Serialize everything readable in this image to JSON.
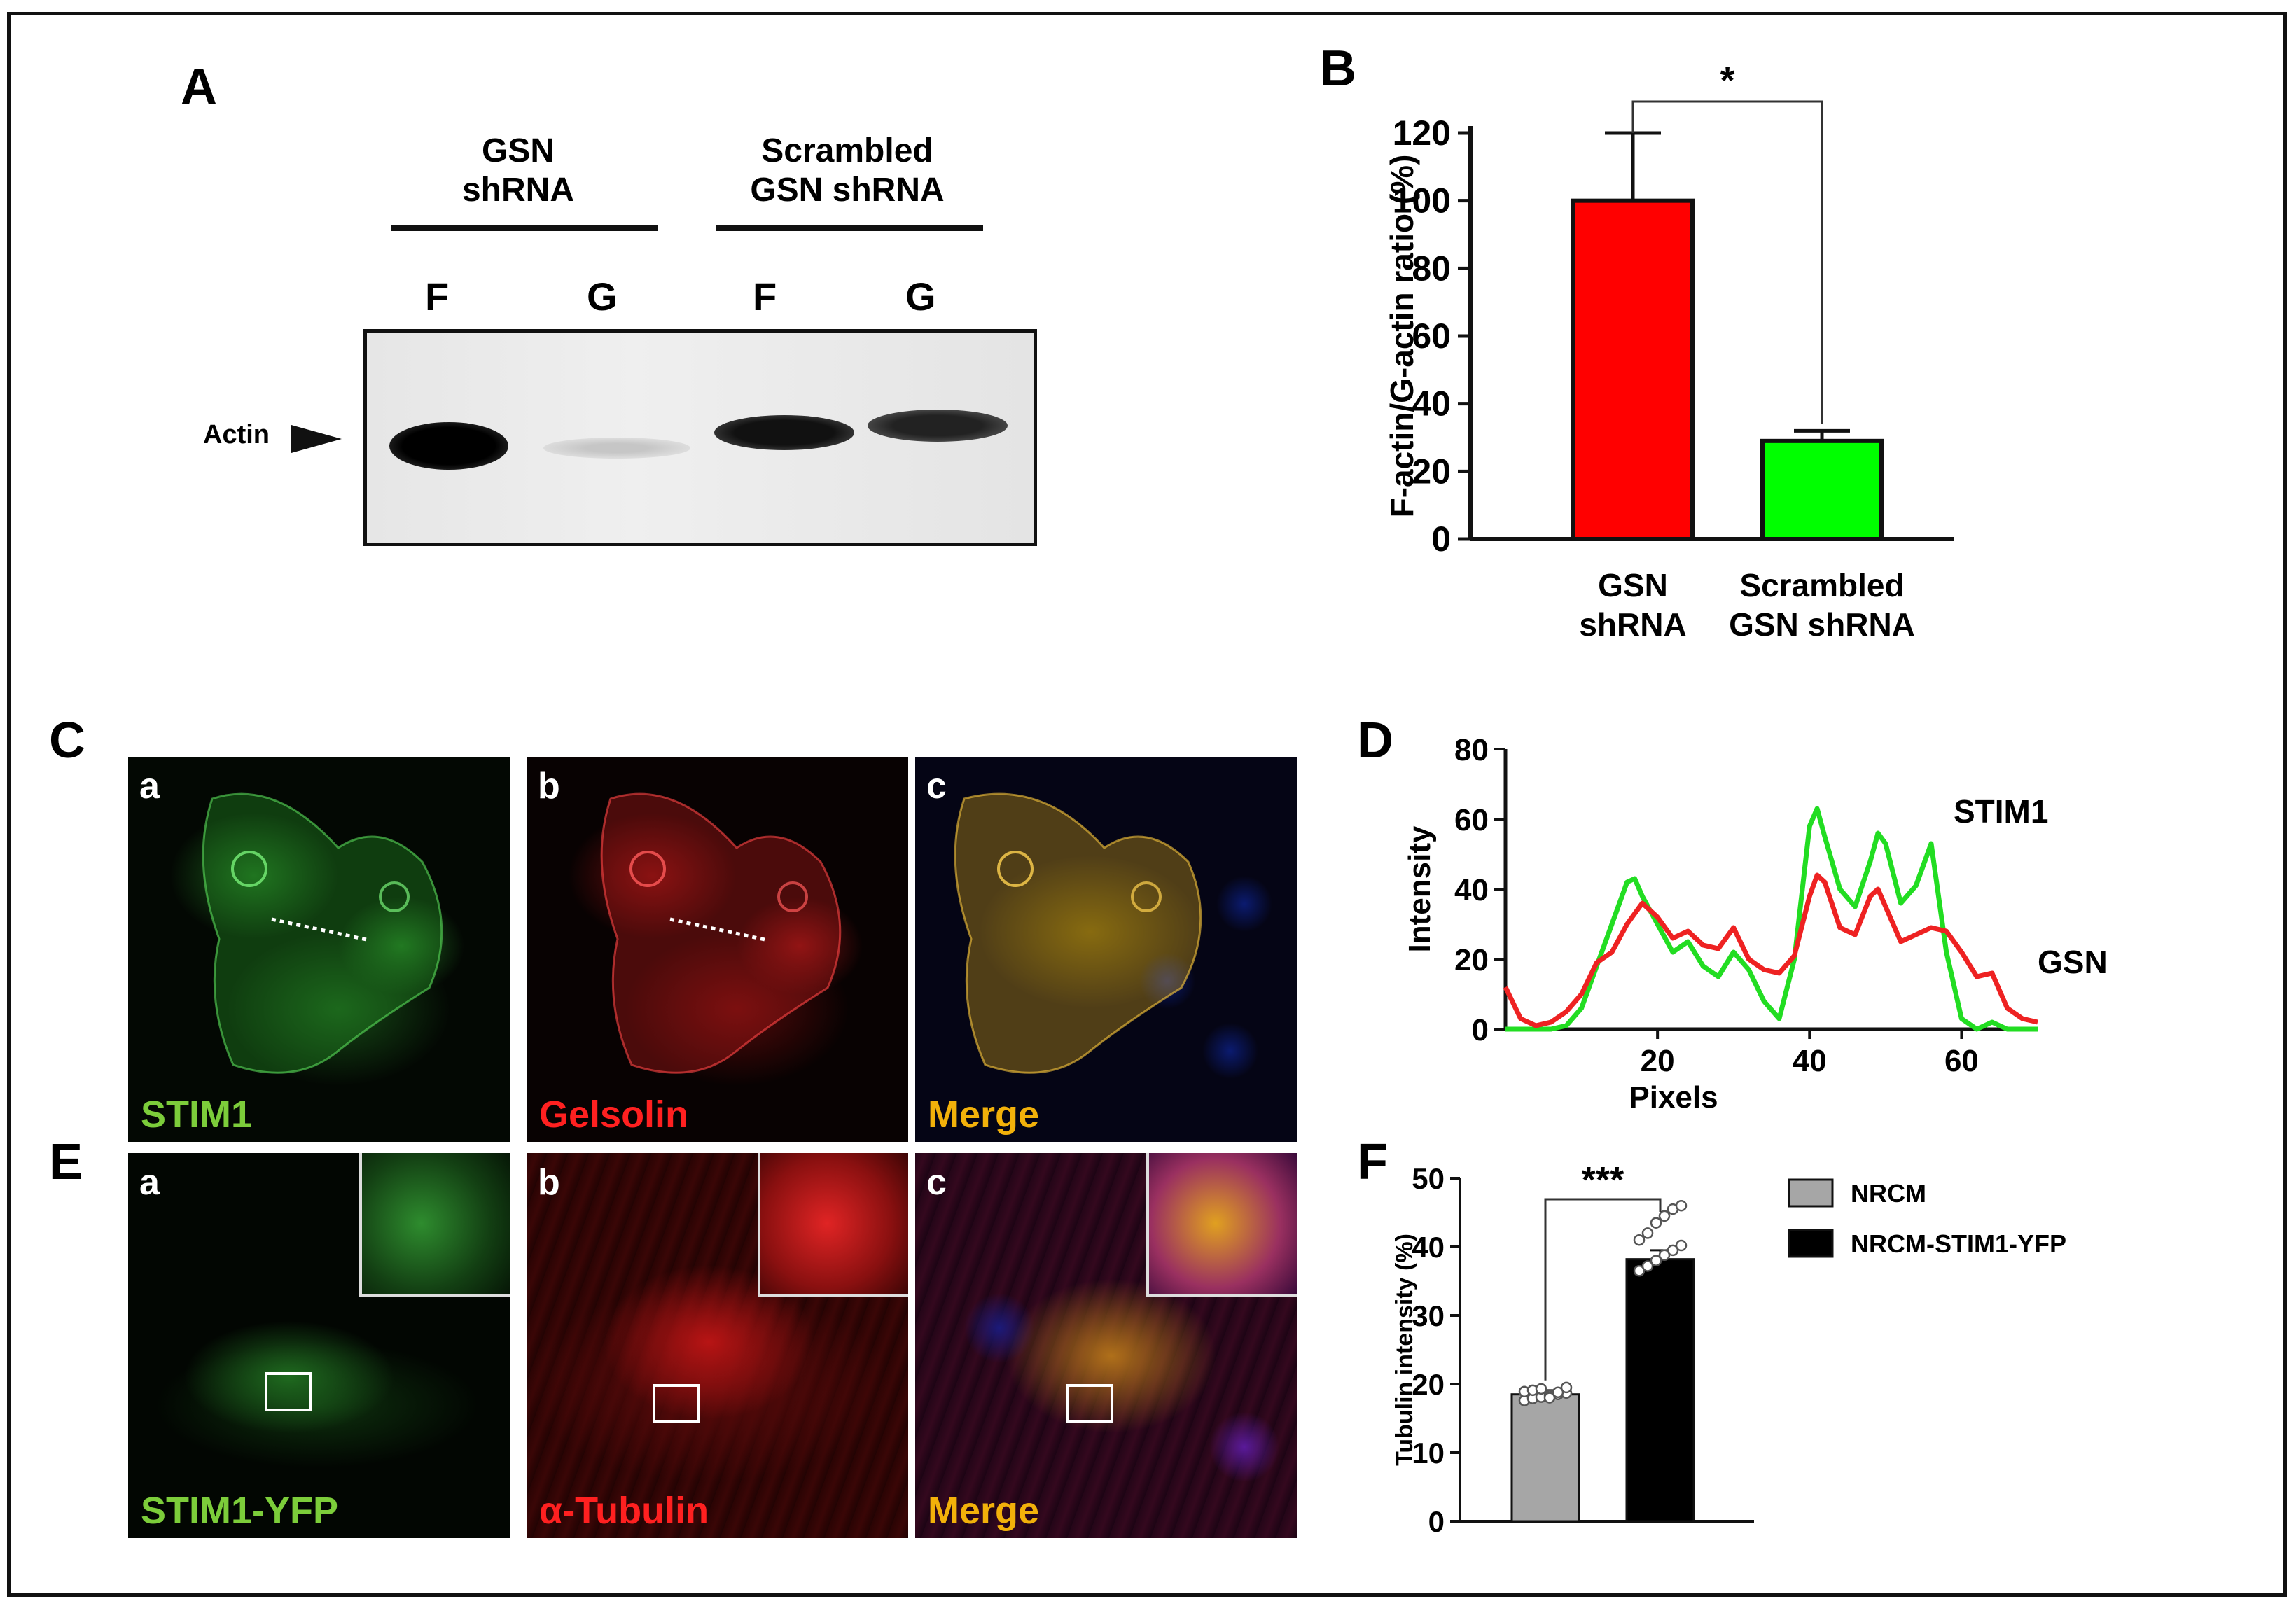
{
  "panels": {
    "A": {
      "letter": "A",
      "groups": [
        {
          "line1": "GSN",
          "line2": "shRNA"
        },
        {
          "line1": "Scrambled",
          "line2": "GSN shRNA"
        }
      ],
      "lanes": [
        "F",
        "G",
        "F",
        "G"
      ],
      "band_label": "Actin"
    },
    "B": {
      "letter": "B",
      "significance": "*",
      "chart_data": {
        "type": "bar",
        "categories": [
          "GSN shRNA",
          "Scrambled GSN shRNA"
        ],
        "category_lines": [
          [
            "GSN",
            "shRNA"
          ],
          [
            "Scrambled",
            "GSN shRNA"
          ]
        ],
        "values": [
          100,
          29
        ],
        "errors": [
          20,
          3
        ],
        "colors": [
          "#ff0000",
          "#00ff00"
        ],
        "ylabel": "F-actin/G-actin  ratio (%)",
        "ylim": [
          0,
          120
        ],
        "yticks": [
          0,
          20,
          40,
          60,
          80,
          100,
          120
        ]
      }
    },
    "C": {
      "letter": "C",
      "images": [
        {
          "label": "a",
          "name": "STIM1",
          "color": "#7ccd3a"
        },
        {
          "label": "b",
          "name": "Gelsolin",
          "color": "#ff2020"
        },
        {
          "label": "c",
          "name": "Merge",
          "color": "#f2b10a"
        }
      ]
    },
    "D": {
      "letter": "D",
      "chart_data": {
        "type": "line",
        "xlabel": "Pixels",
        "ylabel": "Intensity",
        "xlim": [
          0,
          70
        ],
        "ylim": [
          0,
          80
        ],
        "xticks": [
          20,
          40,
          60
        ],
        "yticks": [
          0,
          20,
          40,
          60,
          80
        ],
        "series": [
          {
            "name": "STIM1",
            "color": "#22dd22",
            "x": [
              0,
              2,
              4,
              6,
              8,
              10,
              12,
              14,
              16,
              17,
              18,
              20,
              22,
              24,
              26,
              28,
              30,
              32,
              34,
              36,
              38,
              40,
              41,
              42,
              44,
              46,
              48,
              49,
              50,
              52,
              54,
              56,
              58,
              60,
              62,
              64,
              66,
              70
            ],
            "y": [
              0,
              0,
              0,
              0,
              1,
              6,
              18,
              30,
              42,
              43,
              38,
              30,
              22,
              25,
              18,
              15,
              22,
              17,
              8,
              3,
              20,
              58,
              63,
              55,
              40,
              35,
              48,
              56,
              53,
              36,
              41,
              53,
              22,
              3,
              0,
              2,
              0,
              0
            ]
          },
          {
            "name": "GSN",
            "color": "#ee2222",
            "x": [
              0,
              2,
              4,
              6,
              8,
              10,
              12,
              14,
              16,
              18,
              20,
              22,
              24,
              26,
              28,
              30,
              32,
              34,
              36,
              38,
              40,
              41,
              42,
              44,
              46,
              48,
              49,
              50,
              52,
              54,
              56,
              58,
              60,
              62,
              64,
              66,
              68,
              70
            ],
            "y": [
              12,
              3,
              1,
              2,
              5,
              10,
              19,
              22,
              30,
              36,
              32,
              26,
              28,
              24,
              23,
              29,
              20,
              17,
              16,
              21,
              38,
              44,
              42,
              29,
              27,
              38,
              40,
              35,
              25,
              27,
              29,
              28,
              22,
              15,
              16,
              6,
              3,
              2
            ]
          }
        ]
      }
    },
    "E": {
      "letter": "E",
      "images": [
        {
          "label": "a",
          "name": "STIM1-YFP",
          "color": "#7ccd3a"
        },
        {
          "label": "b",
          "name": "α-Tubulin",
          "color": "#ff2020"
        },
        {
          "label": "c",
          "name": "Merge",
          "color": "#f2b10a"
        }
      ]
    },
    "F": {
      "letter": "F",
      "significance": "***",
      "chart_data": {
        "type": "bar",
        "categories": [
          "NRCM",
          "NRCM-STIM1-YFP"
        ],
        "values": [
          18.5,
          38.2
        ],
        "errors": [
          0.6,
          1.3
        ],
        "colors": [
          "#a6a6a6",
          "#000000"
        ],
        "points": [
          [
            17.6,
            17.9,
            18.1,
            18.3,
            18.5,
            18.7,
            18.9,
            19.1,
            19.3,
            18.0,
            18.8,
            19.5
          ],
          [
            36.5,
            37.2,
            38.0,
            38.8,
            39.5,
            40.2,
            41.0,
            42.0,
            43.5,
            44.5,
            45.5,
            46.0
          ]
        ],
        "ylabel": "Tubulin intensity (%)",
        "ylim": [
          0,
          50
        ],
        "yticks": [
          0,
          10,
          20,
          30,
          40,
          50
        ],
        "legend": [
          {
            "label": "NRCM",
            "color": "#a6a6a6"
          },
          {
            "label": "NRCM-STIM1-YFP",
            "color": "#000000"
          }
        ]
      }
    }
  }
}
